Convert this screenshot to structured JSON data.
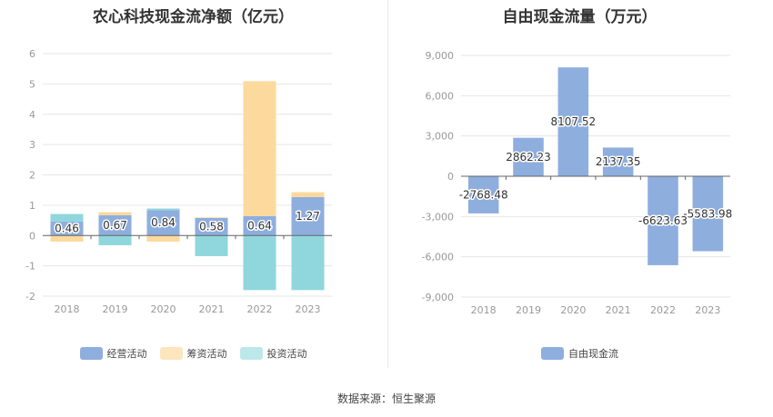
{
  "footer": {
    "source": "数据来源：恒生聚源"
  },
  "chart_data": [
    {
      "type": "bar",
      "stacked": true,
      "title": "农心科技现金流净额（亿元）",
      "categories": [
        "2018",
        "2019",
        "2020",
        "2021",
        "2022",
        "2023"
      ],
      "ylim": [
        -2,
        6
      ],
      "yticks": [
        "-2",
        "-1",
        "0",
        "1",
        "2",
        "3",
        "4",
        "5",
        "6"
      ],
      "grid": true,
      "legend_position": "bottom",
      "series": [
        {
          "name": "经营活动",
          "color": "#8eaede",
          "values": [
            0.46,
            0.67,
            0.84,
            0.58,
            0.64,
            1.27
          ],
          "labels": [
            "0.46",
            "0.67",
            "0.84",
            "0.58",
            "0.64",
            "1.27"
          ]
        },
        {
          "name": "筹资活动",
          "color": "#fcd99c",
          "values": [
            -0.2,
            0.1,
            -0.2,
            0.02,
            4.45,
            0.16
          ]
        },
        {
          "name": "投资活动",
          "color": "#8fd7dc",
          "values": [
            0.25,
            -0.32,
            0.05,
            -0.68,
            -1.8,
            -1.8
          ]
        }
      ]
    },
    {
      "type": "bar",
      "title": "自由现金流量（万元）",
      "categories": [
        "2018",
        "2019",
        "2020",
        "2021",
        "2022",
        "2023"
      ],
      "ylim": [
        -9000,
        9000
      ],
      "yticks": [
        "-9,000",
        "-6,000",
        "-3,000",
        "0",
        "3,000",
        "6,000",
        "9,000"
      ],
      "grid": true,
      "legend_position": "bottom",
      "series": [
        {
          "name": "自由现金流",
          "color": "#8eaede",
          "values": [
            -2768.48,
            2862.23,
            8107.52,
            2137.35,
            -6623.63,
            -5583.98
          ],
          "labels": [
            "-2768.48",
            "2862.23",
            "8107.52",
            "2137.35",
            "-6623.63",
            "-5583.98"
          ]
        }
      ]
    }
  ]
}
